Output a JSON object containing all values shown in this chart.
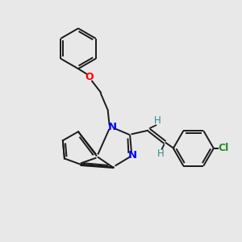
{
  "background_color": "#e8e8e8",
  "bond_color": "#1a1a1a",
  "N_color": "#0000ff",
  "O_color": "#ff0000",
  "Cl_color": "#228B22",
  "H_color": "#2e8b8b",
  "line_width": 1.4,
  "figsize": [
    3.0,
    3.0
  ],
  "dpi": 100,
  "xlim": [
    0,
    10
  ],
  "ylim": [
    0,
    10
  ]
}
